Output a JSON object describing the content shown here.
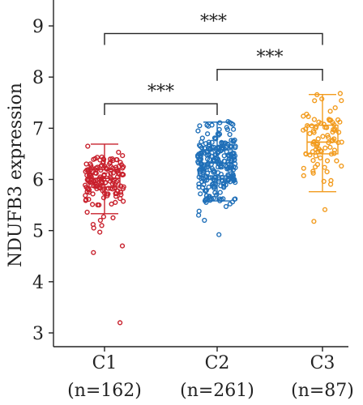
{
  "chart_data": {
    "type": "box",
    "ylabel": "NDUFB3 expression",
    "ylim": [
      2.7,
      9.5
    ],
    "yticks": [
      3,
      4,
      5,
      6,
      7,
      8,
      9
    ],
    "groups": [
      {
        "name": "C1",
        "n_label": "(n=162)",
        "n": 162,
        "color": "#c8202c",
        "box": {
          "min": 5.33,
          "q1": 5.85,
          "median": 6.02,
          "q3": 6.19,
          "max": 6.69
        },
        "outliers": [
          3.2,
          4.57,
          4.7,
          4.97,
          5.05,
          5.1,
          5.12,
          5.2,
          5.25,
          5.27
        ]
      },
      {
        "name": "C2",
        "n_label": "(n=261)",
        "n": 261,
        "color": "#1f6fb8",
        "box": {
          "min": 5.58,
          "q1": 6.07,
          "median": 6.32,
          "q3": 6.58,
          "max": 7.12
        },
        "outliers": [
          4.92,
          5.2,
          5.3,
          5.38,
          5.47,
          5.52,
          5.55,
          5.56,
          7.13
        ]
      },
      {
        "name": "C3",
        "n_label": "(n=87)",
        "n": 87,
        "color": "#f29b1d",
        "box": {
          "min": 5.76,
          "q1": 6.5,
          "median": 6.73,
          "q3": 7.06,
          "max": 7.66
        },
        "outliers": [
          5.18,
          5.41,
          7.68
        ]
      }
    ],
    "significance": [
      {
        "from": "C1",
        "to": "C2",
        "y": 7.48,
        "label": "***"
      },
      {
        "from": "C2",
        "to": "C3",
        "y": 8.15,
        "label": "***"
      },
      {
        "from": "C1",
        "to": "C3",
        "y": 8.85,
        "label": "***"
      }
    ]
  }
}
